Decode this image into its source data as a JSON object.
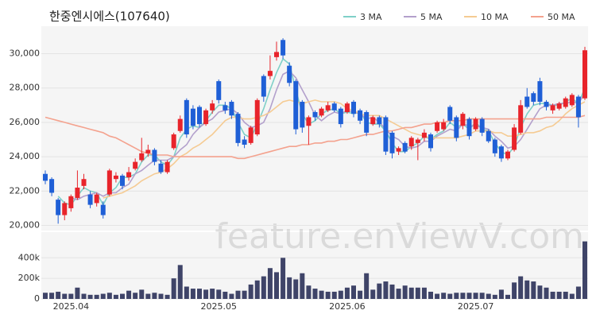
{
  "chart_data": {
    "type": "candlestick",
    "title": "한중엔시에스(107640)",
    "watermark": "feature.enViewV.com",
    "categories": [
      null,
      null,
      null,
      null,
      "2025.04",
      null,
      null,
      null,
      null,
      null,
      null,
      null,
      null,
      null,
      null,
      null,
      null,
      null,
      null,
      null,
      null,
      null,
      null,
      null,
      null,
      null,
      null,
      "2025.05",
      null,
      null,
      null,
      null,
      null,
      null,
      null,
      null,
      null,
      null,
      null,
      null,
      null,
      null,
      null,
      null,
      null,
      null,
      null,
      "2025.06",
      null,
      null,
      null,
      null,
      null,
      null,
      null,
      null,
      null,
      null,
      null,
      null,
      null,
      null,
      null,
      null,
      null,
      null,
      null,
      "2025.07",
      null,
      null,
      null,
      null,
      null,
      null,
      null,
      null,
      null,
      null,
      null,
      null,
      null,
      null,
      null,
      null,
      null
    ],
    "open": [
      23000,
      22700,
      21500,
      20600,
      21000,
      21600,
      22300,
      21800,
      21300,
      21200,
      21800,
      22700,
      22900,
      22800,
      23300,
      23800,
      24200,
      24400,
      23600,
      23100,
      24500,
      25500,
      27300,
      26800,
      26900,
      25900,
      26700,
      28400,
      27000,
      27200,
      26500,
      25000,
      24800,
      25300,
      28700,
      28700,
      29800,
      30800,
      29300,
      28400,
      27200,
      25800,
      26600,
      26400,
      26700,
      27100,
      26800,
      26600,
      27200,
      26700,
      26600,
      25900,
      26300,
      26300,
      25400,
      24300,
      24800,
      24600,
      24800,
      25100,
      25300,
      25500,
      25600,
      26900,
      26300,
      25800,
      26200,
      25600,
      26200,
      25500,
      25000,
      24600,
      23900,
      24400,
      25400,
      27500,
      27700,
      28400,
      27200,
      26700,
      26800,
      26900,
      27000,
      27500,
      27400
    ],
    "high": [
      23200,
      22800,
      21600,
      21400,
      21800,
      23200,
      23000,
      22000,
      21900,
      21400,
      23300,
      23100,
      23000,
      23400,
      23900,
      25100,
      24700,
      24500,
      23800,
      23800,
      25400,
      26400,
      27400,
      27000,
      27000,
      26800,
      27300,
      28500,
      27200,
      27300,
      26600,
      25200,
      25800,
      27400,
      28800,
      29900,
      30700,
      30900,
      29500,
      28500,
      27300,
      26400,
      26700,
      26900,
      27200,
      27200,
      26900,
      27200,
      27300,
      26800,
      26700,
      26400,
      26400,
      26400,
      25500,
      24600,
      24900,
      25200,
      25100,
      25600,
      25400,
      26100,
      26200,
      27000,
      26400,
      26600,
      26300,
      26300,
      26300,
      25600,
      25100,
      24700,
      24400,
      25900,
      27300,
      28000,
      27800,
      28600,
      27300,
      27100,
      27200,
      27500,
      27700,
      27600,
      30400
    ],
    "low": [
      22400,
      21700,
      20100,
      20300,
      20800,
      21500,
      22100,
      21000,
      21100,
      20400,
      21700,
      22500,
      22100,
      22600,
      23200,
      23700,
      24000,
      23500,
      23000,
      23000,
      24400,
      25400,
      25100,
      25600,
      25700,
      25800,
      26500,
      27100,
      26500,
      26200,
      24600,
      24500,
      24700,
      25200,
      27200,
      28500,
      29600,
      29700,
      28100,
      25300,
      25400,
      24700,
      26100,
      26300,
      26600,
      26600,
      25700,
      26500,
      26300,
      25900,
      25200,
      25800,
      25700,
      24100,
      23900,
      24100,
      24200,
      24400,
      23800,
      24900,
      24300,
      25400,
      25500,
      25900,
      24900,
      25600,
      25000,
      25500,
      25200,
      24800,
      24000,
      23700,
      23800,
      24300,
      25300,
      26800,
      27000,
      27000,
      26700,
      26500,
      26700,
      26800,
      26900,
      25700,
      27300
    ],
    "close": [
      22600,
      21900,
      20600,
      21300,
      21700,
      22200,
      22700,
      21200,
      21800,
      20600,
      23200,
      22900,
      22300,
      23100,
      23700,
      24200,
      24400,
      23700,
      23100,
      23700,
      25300,
      26200,
      25300,
      25800,
      25900,
      26700,
      27100,
      27300,
      26700,
      26400,
      24800,
      24700,
      25700,
      27300,
      27500,
      29000,
      30100,
      29900,
      28300,
      25600,
      25700,
      26300,
      26300,
      26800,
      27000,
      26700,
      25900,
      27100,
      26500,
      26100,
      25400,
      26300,
      25900,
      24300,
      24200,
      24500,
      24300,
      25100,
      25000,
      25400,
      24500,
      26000,
      26000,
      26100,
      25100,
      26500,
      25200,
      26200,
      25400,
      24900,
      24200,
      23900,
      24300,
      25700,
      27000,
      26900,
      27200,
      27200,
      26900,
      27000,
      27100,
      27400,
      27600,
      26300,
      30200
    ],
    "up_color": "#e8242b",
    "down_color": "#1f5fd6",
    "series": [
      {
        "name": "3 MA",
        "color": "#7fd0c8",
        "values": [
          null,
          null,
          21700,
          21300,
          21200,
          21700,
          22200,
          22000,
          21900,
          21200,
          21900,
          22200,
          22800,
          22800,
          23000,
          23700,
          24100,
          24100,
          23700,
          23500,
          24000,
          25100,
          25600,
          25800,
          25700,
          26100,
          26600,
          27000,
          27000,
          26800,
          26000,
          25300,
          25100,
          25900,
          26800,
          27900,
          28900,
          29700,
          29400,
          27900,
          26500,
          25900,
          26100,
          26500,
          26700,
          26800,
          26500,
          26600,
          26500,
          26600,
          26000,
          25900,
          25900,
          25500,
          24800,
          24300,
          24300,
          24600,
          24800,
          25200,
          25000,
          25300,
          25500,
          26000,
          25700,
          25900,
          25600,
          26000,
          25600,
          25500,
          24800,
          24300,
          24100,
          24600,
          25700,
          26500,
          27000,
          27100,
          27100,
          27000,
          27000,
          27200,
          27400,
          27100,
          28000
        ]
      },
      {
        "name": "5 MA",
        "color": "#b3a0cc",
        "values": [
          null,
          null,
          null,
          null,
          21600,
          21500,
          21700,
          21800,
          21900,
          21700,
          21900,
          21900,
          22200,
          22400,
          23000,
          23200,
          23500,
          23800,
          23800,
          23800,
          24000,
          24400,
          24700,
          25300,
          25700,
          26000,
          26200,
          26600,
          26700,
          26800,
          26500,
          26000,
          25700,
          25800,
          26000,
          26800,
          27900,
          28800,
          29000,
          28600,
          27900,
          27200,
          26400,
          26100,
          26400,
          26600,
          26500,
          26700,
          26600,
          26500,
          26200,
          26300,
          26000,
          25600,
          25200,
          25000,
          24600,
          24500,
          24600,
          24900,
          24900,
          25200,
          25400,
          25600,
          25500,
          25900,
          25800,
          25800,
          25700,
          25600,
          25200,
          24900,
          24500,
          24600,
          25000,
          25600,
          26200,
          26800,
          27000,
          27000,
          27100,
          27100,
          27200,
          27100,
          27700
        ]
      },
      {
        "name": "10 MA",
        "color": "#f5cb93",
        "values": [
          null,
          null,
          null,
          null,
          null,
          null,
          null,
          null,
          null,
          21600,
          21700,
          21800,
          21900,
          22100,
          22300,
          22600,
          22800,
          23000,
          23100,
          23300,
          23600,
          24000,
          24200,
          24500,
          24700,
          25000,
          25300,
          25700,
          26100,
          26300,
          26300,
          26200,
          26200,
          26300,
          26400,
          26600,
          26900,
          27200,
          27300,
          27200,
          27100,
          27200,
          27300,
          27200,
          27200,
          27200,
          27100,
          26800,
          26700,
          26500,
          26400,
          26400,
          26400,
          26200,
          26000,
          25800,
          25600,
          25400,
          25300,
          25200,
          25100,
          25100,
          25100,
          25100,
          25100,
          25200,
          25300,
          25500,
          25500,
          25500,
          25400,
          25400,
          25200,
          25200,
          25300,
          25400,
          25400,
          25500,
          25700,
          25800,
          26100,
          26500,
          26800,
          27000,
          27200
        ]
      },
      {
        "name": "50 MA",
        "color": "#f4a28e",
        "values": [
          26300,
          26200,
          26100,
          26000,
          25900,
          25800,
          25700,
          25600,
          25500,
          25400,
          25200,
          25100,
          24900,
          24700,
          24500,
          24300,
          24200,
          24100,
          24100,
          24100,
          24000,
          24000,
          24000,
          24000,
          24000,
          24000,
          24000,
          24000,
          24000,
          24000,
          23900,
          23900,
          24000,
          24100,
          24200,
          24300,
          24400,
          24500,
          24600,
          24600,
          24700,
          24700,
          24800,
          24800,
          24900,
          24900,
          25000,
          25000,
          25100,
          25200,
          25300,
          25300,
          25400,
          25500,
          25500,
          25600,
          25700,
          25700,
          25800,
          25900,
          25900,
          26000,
          26000,
          26100,
          26100,
          26100,
          26200,
          26200,
          26200,
          26200,
          26200,
          26200,
          26200,
          26200,
          26200,
          26200,
          26200,
          26200,
          26300,
          26300,
          26300,
          26300,
          26300,
          26300,
          26400
        ]
      }
    ],
    "ylim": [
      19700,
      31600
    ],
    "yticks": [
      {
        "value": 20000,
        "label": "20,000"
      },
      {
        "value": 22000,
        "label": "22,000"
      },
      {
        "value": 24000,
        "label": "24,000"
      },
      {
        "value": 26000,
        "label": "26,000"
      },
      {
        "value": 28000,
        "label": "28,000"
      },
      {
        "value": 30000,
        "label": "30,000"
      }
    ],
    "grid": true,
    "legend": "top-right",
    "volume": {
      "color": "#3f4468",
      "values": [
        60000,
        60000,
        70000,
        50000,
        50000,
        110000,
        50000,
        40000,
        40000,
        50000,
        60000,
        40000,
        50000,
        80000,
        60000,
        90000,
        50000,
        60000,
        50000,
        40000,
        200000,
        330000,
        120000,
        100000,
        100000,
        90000,
        100000,
        90000,
        70000,
        50000,
        80000,
        80000,
        140000,
        180000,
        220000,
        300000,
        260000,
        400000,
        210000,
        190000,
        250000,
        130000,
        100000,
        80000,
        70000,
        70000,
        80000,
        110000,
        130000,
        80000,
        250000,
        90000,
        150000,
        170000,
        140000,
        100000,
        130000,
        110000,
        110000,
        110000,
        70000,
        50000,
        60000,
        50000,
        60000,
        60000,
        60000,
        60000,
        60000,
        50000,
        40000,
        90000,
        40000,
        160000,
        220000,
        180000,
        170000,
        130000,
        110000,
        70000,
        70000,
        70000,
        50000,
        120000,
        560000
      ],
      "ylim": [
        0,
        650000
      ],
      "yticks": [
        0,
        {
          "value": 200000,
          "label": "200k"
        },
        {
          "value": 400000,
          "label": "400k"
        }
      ]
    }
  }
}
